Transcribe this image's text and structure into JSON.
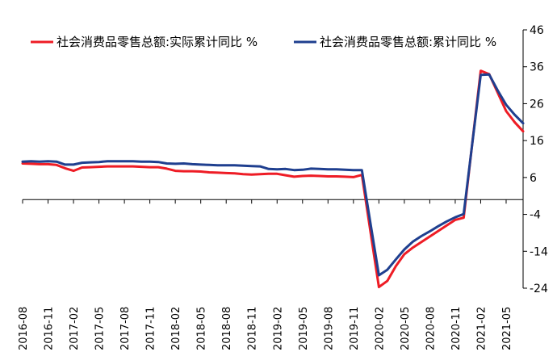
{
  "chart_data": {
    "type": "line",
    "x": [
      "2016-08",
      "2016-09",
      "2016-10",
      "2016-11",
      "2016-12",
      "2017-01",
      "2017-02",
      "2017-03",
      "2017-04",
      "2017-05",
      "2017-06",
      "2017-07",
      "2017-08",
      "2017-09",
      "2017-10",
      "2017-11",
      "2017-12",
      "2018-01",
      "2018-02",
      "2018-03",
      "2018-04",
      "2018-05",
      "2018-06",
      "2018-07",
      "2018-08",
      "2018-09",
      "2018-10",
      "2018-11",
      "2018-12",
      "2019-01",
      "2019-02",
      "2019-03",
      "2019-04",
      "2019-05",
      "2019-06",
      "2019-07",
      "2019-08",
      "2019-09",
      "2019-10",
      "2019-11",
      "2019-12",
      "2020-01",
      "2020-02",
      "2020-03",
      "2020-04",
      "2020-05",
      "2020-06",
      "2020-07",
      "2020-08",
      "2020-09",
      "2020-10",
      "2020-11",
      "2020-12",
      "2021-01",
      "2021-02",
      "2021-03",
      "2021-04",
      "2021-05",
      "2021-06",
      "2021-07"
    ],
    "series": [
      {
        "name": "社会消费品零售总额:实际累计同比 %",
        "color": "#ee1c25",
        "values": [
          9.8,
          9.7,
          9.6,
          9.6,
          9.4,
          8.5,
          7.8,
          8.7,
          8.8,
          8.9,
          9.0,
          9.0,
          9.0,
          9.0,
          8.9,
          8.8,
          8.8,
          8.4,
          7.8,
          7.7,
          7.7,
          7.6,
          7.4,
          7.3,
          7.2,
          7.1,
          6.9,
          6.8,
          6.9,
          7.0,
          7.0,
          6.6,
          6.2,
          6.4,
          6.5,
          6.4,
          6.3,
          6.3,
          6.2,
          6.1,
          6.7,
          null,
          -23.7,
          -22.0,
          -18.0,
          -14.8,
          -13.0,
          -11.5,
          -10.0,
          -8.5,
          -7.0,
          -5.5,
          -4.9,
          null,
          34.9,
          34.0,
          29.0,
          24.0,
          21.0,
          18.5
        ]
      },
      {
        "name": "社会消费品零售总额:累计同比 %",
        "color": "#1f3f8f",
        "values": [
          10.3,
          10.4,
          10.3,
          10.4,
          10.3,
          9.5,
          9.5,
          10.0,
          10.1,
          10.2,
          10.4,
          10.4,
          10.4,
          10.4,
          10.3,
          10.3,
          10.2,
          9.8,
          9.7,
          9.8,
          9.6,
          9.5,
          9.4,
          9.3,
          9.3,
          9.3,
          9.2,
          9.1,
          9.0,
          8.3,
          8.2,
          8.3,
          8.0,
          8.1,
          8.4,
          8.3,
          8.2,
          8.2,
          8.1,
          8.0,
          8.0,
          null,
          -20.5,
          -19.0,
          -16.2,
          -13.5,
          -11.4,
          -9.9,
          -8.6,
          -7.2,
          -5.9,
          -4.8,
          -3.9,
          null,
          33.8,
          33.9,
          29.6,
          25.7,
          23.0,
          20.7
        ]
      }
    ],
    "ylim": [
      -24,
      46
    ],
    "yticks": [
      46,
      36,
      26,
      16,
      6,
      -4,
      -14,
      -24
    ],
    "y_tick_labels": [
      "46",
      "36",
      "26",
      "16",
      "6",
      "-4",
      "-14",
      "-24"
    ],
    "xtick_labels": [
      "2016-08",
      "2016-11",
      "2017-02",
      "2017-05",
      "2017-08",
      "2017-11",
      "2018-02",
      "2018-05",
      "2018-08",
      "2018-11",
      "2019-02",
      "2019-05",
      "2019-08",
      "2019-11",
      "2020-02",
      "2020-05",
      "2020-08",
      "2020-11",
      "2021-02",
      "2021-05"
    ],
    "x_axis_at": 0,
    "y_axis_position": "right",
    "grid": false,
    "legend_position": "top"
  }
}
